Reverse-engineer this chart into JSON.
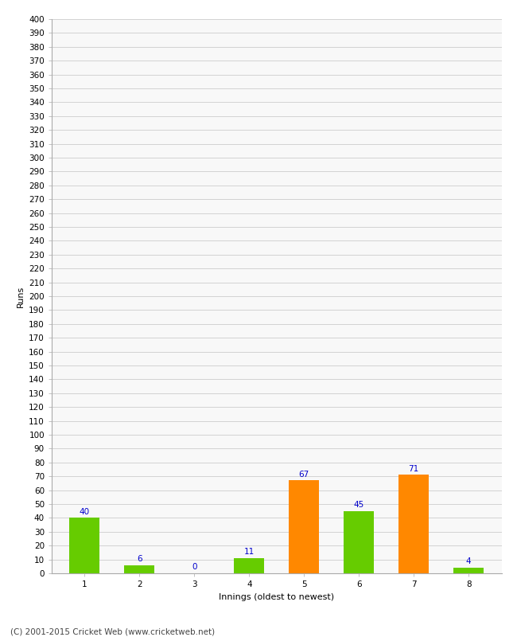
{
  "categories": [
    "1",
    "2",
    "3",
    "4",
    "5",
    "6",
    "7",
    "8"
  ],
  "values": [
    40,
    6,
    0,
    11,
    67,
    45,
    71,
    4
  ],
  "bar_colors": [
    "#66cc00",
    "#66cc00",
    "#66cc00",
    "#66cc00",
    "#ff8800",
    "#66cc00",
    "#ff8800",
    "#66cc00"
  ],
  "xlabel": "Innings (oldest to newest)",
  "ylabel": "Runs",
  "ylim": [
    0,
    400
  ],
  "ytick_step": 10,
  "label_color": "#0000cc",
  "label_fontsize": 7.5,
  "axis_label_fontsize": 8,
  "tick_fontsize": 7.5,
  "background_color": "#ffffff",
  "plot_bg_color": "#f8f8f8",
  "grid_color": "#cccccc",
  "footer": "(C) 2001-2015 Cricket Web (www.cricketweb.net)",
  "footer_fontsize": 7.5,
  "bar_width": 0.55
}
